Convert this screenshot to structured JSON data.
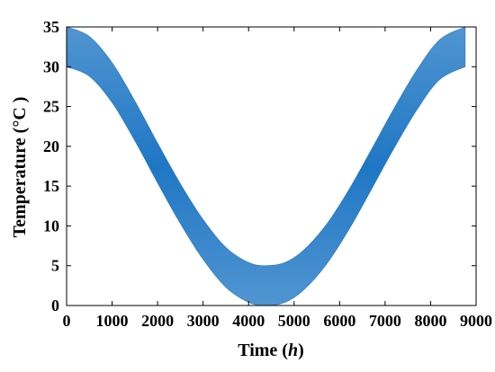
{
  "chart_data": {
    "type": "area",
    "title": "",
    "xlabel": "Time (h)",
    "xlabel_parts": {
      "prefix": "Time (",
      "italic": "h",
      "suffix": ")"
    },
    "ylabel": "Temperature (°C )",
    "xlim": [
      0,
      9000
    ],
    "ylim": [
      0,
      35
    ],
    "x_ticks": [
      0,
      1000,
      2000,
      3000,
      4000,
      5000,
      6000,
      7000,
      8000,
      9000
    ],
    "y_ticks": [
      0,
      5,
      10,
      15,
      20,
      25,
      30,
      35
    ],
    "grid": false,
    "legend": "none",
    "band_color": "#1f77c4",
    "series": [
      {
        "x": [
          0,
          500,
          1000,
          1500,
          2000,
          2500,
          3000,
          3500,
          4000,
          4380,
          4800,
          5200,
          5700,
          6200,
          6700,
          7200,
          7700,
          8200,
          8760
        ],
        "lower": [
          30.0,
          28.8,
          25.5,
          20.7,
          15.4,
          10.3,
          5.8,
          2.3,
          0.4,
          0.0,
          0.4,
          1.9,
          5.1,
          9.5,
          14.6,
          19.8,
          24.6,
          28.4,
          30.0
        ],
        "upper": [
          35.0,
          33.8,
          30.5,
          25.7,
          20.4,
          15.3,
          10.8,
          7.3,
          5.4,
          5.0,
          5.4,
          6.9,
          10.1,
          14.5,
          19.6,
          24.8,
          29.6,
          33.4,
          35.0
        ]
      }
    ]
  }
}
